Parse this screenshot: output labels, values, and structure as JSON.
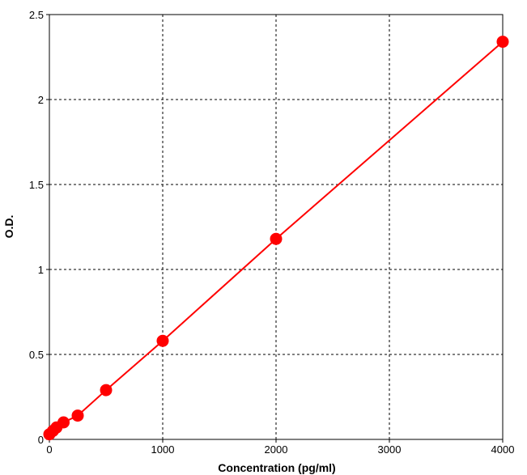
{
  "chart_data": {
    "type": "line",
    "title": "",
    "xlabel": "Concentration (pg/ml)",
    "ylabel": "O.D.",
    "xlim": [
      0,
      4000
    ],
    "ylim": [
      0,
      2.5
    ],
    "xticks": [
      0,
      1000,
      2000,
      3000,
      4000
    ],
    "yticks": [
      0,
      0.5,
      1,
      1.5,
      2,
      2.5
    ],
    "xtick_labels": [
      "0",
      "1000",
      "2000",
      "3000",
      "4000"
    ],
    "ytick_labels": [
      "0",
      "0.5",
      "1",
      "1.5",
      "2",
      "2.5"
    ],
    "grid": true,
    "grid_style": "dashed",
    "series": [
      {
        "color": "#ff0000",
        "marker": "filled-circle",
        "x": [
          0,
          31.25,
          62.5,
          125,
          250,
          500,
          1000,
          2000,
          4000
        ],
        "y": [
          0.03,
          0.05,
          0.07,
          0.1,
          0.14,
          0.29,
          0.58,
          1.18,
          2.34
        ]
      }
    ]
  }
}
